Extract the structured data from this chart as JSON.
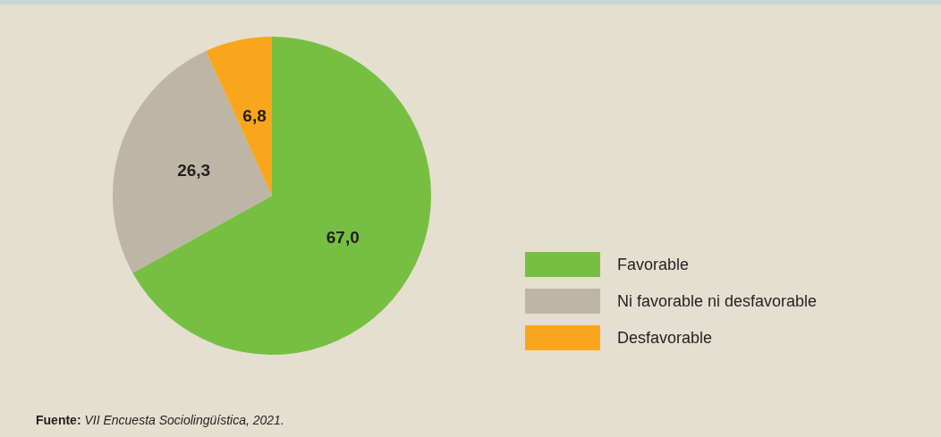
{
  "chart_data": {
    "type": "pie",
    "categories": [
      "Favorable",
      "Ni favorable ni desfavorable",
      "Desfavorable"
    ],
    "values": [
      67.0,
      26.3,
      6.8
    ],
    "colors": [
      "#76bf43",
      "#bdb5a6",
      "#f9a61d"
    ],
    "value_labels": [
      "67,0",
      "26,3",
      "6,8"
    ],
    "legend": "right",
    "annotations": [
      "Fuente: VII Encuesta Sociolingüística, 2021."
    ]
  }
}
